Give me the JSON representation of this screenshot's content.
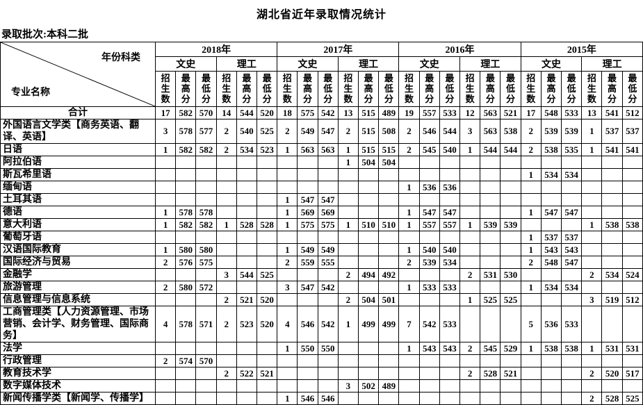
{
  "title": "湖北省近年录取情况统计",
  "batch_label": "录取批次:本科二批",
  "table": {
    "corner": {
      "top_label": "年份科类",
      "bottom_label": "专业名称"
    },
    "years": [
      "2018年",
      "2017年",
      "2016年",
      "2015年"
    ],
    "tracks": [
      "文史",
      "理工"
    ],
    "metrics": [
      "招生数",
      "最高分",
      "最低分"
    ],
    "rows": [
      {
        "name": "合计",
        "center": true,
        "values": [
          17,
          582,
          570,
          14,
          544,
          520,
          18,
          575,
          542,
          13,
          515,
          489,
          19,
          557,
          533,
          12,
          563,
          521,
          17,
          548,
          533,
          13,
          541,
          512
        ]
      },
      {
        "name": "外国语言文学类【商务英语、翻译、英语】",
        "center": false,
        "values": [
          3,
          578,
          577,
          2,
          540,
          525,
          2,
          549,
          547,
          2,
          515,
          508,
          2,
          546,
          544,
          3,
          563,
          538,
          2,
          539,
          539,
          1,
          537,
          537
        ]
      },
      {
        "name": "日语",
        "center": false,
        "values": [
          1,
          582,
          582,
          2,
          534,
          523,
          1,
          563,
          563,
          1,
          515,
          515,
          2,
          545,
          540,
          1,
          544,
          544,
          2,
          538,
          535,
          1,
          541,
          541
        ]
      },
      {
        "name": "阿拉伯语",
        "center": false,
        "values": [
          "",
          "",
          "",
          "",
          "",
          "",
          "",
          "",
          "",
          1,
          504,
          504,
          "",
          "",
          "",
          "",
          "",
          "",
          "",
          "",
          "",
          "",
          "",
          ""
        ]
      },
      {
        "name": "斯瓦希里语",
        "center": false,
        "values": [
          "",
          "",
          "",
          "",
          "",
          "",
          "",
          "",
          "",
          "",
          "",
          "",
          "",
          "",
          "",
          "",
          "",
          "",
          1,
          534,
          534,
          "",
          "",
          ""
        ]
      },
      {
        "name": "缅甸语",
        "center": false,
        "values": [
          "",
          "",
          "",
          "",
          "",
          "",
          "",
          "",
          "",
          "",
          "",
          "",
          1,
          536,
          536,
          "",
          "",
          "",
          "",
          "",
          "",
          "",
          "",
          ""
        ]
      },
      {
        "name": "土耳其语",
        "center": false,
        "values": [
          "",
          "",
          "",
          "",
          "",
          "",
          1,
          547,
          547,
          "",
          "",
          "",
          "",
          "",
          "",
          "",
          "",
          "",
          "",
          "",
          "",
          "",
          "",
          ""
        ]
      },
      {
        "name": "德语",
        "center": false,
        "values": [
          1,
          578,
          578,
          "",
          "",
          "",
          1,
          569,
          569,
          "",
          "",
          "",
          1,
          547,
          547,
          "",
          "",
          "",
          1,
          547,
          547,
          "",
          "",
          ""
        ]
      },
      {
        "name": "意大利语",
        "center": false,
        "values": [
          1,
          582,
          582,
          1,
          528,
          528,
          1,
          575,
          575,
          1,
          510,
          510,
          1,
          557,
          557,
          1,
          539,
          539,
          "",
          "",
          "",
          1,
          538,
          538
        ]
      },
      {
        "name": "葡萄牙语",
        "center": false,
        "values": [
          "",
          "",
          "",
          "",
          "",
          "",
          "",
          "",
          "",
          "",
          "",
          "",
          "",
          "",
          "",
          "",
          "",
          "",
          1,
          537,
          537,
          "",
          "",
          ""
        ]
      },
      {
        "name": "汉语国际教育",
        "center": false,
        "values": [
          1,
          580,
          580,
          "",
          "",
          "",
          1,
          549,
          549,
          "",
          "",
          "",
          1,
          540,
          540,
          "",
          "",
          "",
          1,
          543,
          543,
          "",
          "",
          ""
        ]
      },
      {
        "name": "国际经济与贸易",
        "center": false,
        "values": [
          2,
          576,
          575,
          "",
          "",
          "",
          2,
          559,
          555,
          "",
          "",
          "",
          2,
          539,
          534,
          "",
          "",
          "",
          2,
          548,
          547,
          "",
          "",
          ""
        ]
      },
      {
        "name": "金融学",
        "center": false,
        "values": [
          "",
          "",
          "",
          3,
          544,
          525,
          "",
          "",
          "",
          2,
          494,
          492,
          "",
          "",
          "",
          2,
          531,
          530,
          "",
          "",
          "",
          2,
          534,
          524
        ]
      },
      {
        "name": "旅游管理",
        "center": false,
        "values": [
          2,
          580,
          572,
          "",
          "",
          "",
          3,
          547,
          542,
          "",
          "",
          "",
          1,
          533,
          533,
          "",
          "",
          "",
          1,
          534,
          534,
          "",
          "",
          ""
        ]
      },
      {
        "name": "信息管理与信息系统",
        "center": false,
        "values": [
          "",
          "",
          "",
          2,
          521,
          520,
          "",
          "",
          "",
          2,
          504,
          501,
          "",
          "",
          "",
          1,
          525,
          525,
          "",
          "",
          "",
          3,
          519,
          512
        ]
      },
      {
        "name": "工商管理类【人力资源管理、市场营销、会计学、财务管理、国际商务】",
        "center": false,
        "values": [
          4,
          578,
          571,
          2,
          523,
          520,
          4,
          546,
          542,
          1,
          499,
          499,
          7,
          542,
          533,
          "",
          "",
          "",
          5,
          536,
          533,
          "",
          "",
          ""
        ]
      },
      {
        "name": "法学",
        "center": false,
        "values": [
          "",
          "",
          "",
          "",
          "",
          "",
          1,
          550,
          550,
          "",
          "",
          "",
          1,
          543,
          543,
          2,
          545,
          529,
          1,
          538,
          538,
          1,
          531,
          531
        ]
      },
      {
        "name": "行政管理",
        "center": false,
        "values": [
          2,
          574,
          570,
          "",
          "",
          "",
          "",
          "",
          "",
          "",
          "",
          "",
          "",
          "",
          "",
          "",
          "",
          "",
          "",
          "",
          "",
          "",
          "",
          ""
        ]
      },
      {
        "name": "教育技术学",
        "center": false,
        "values": [
          "",
          "",
          "",
          2,
          522,
          521,
          "",
          "",
          "",
          "",
          "",
          "",
          "",
          "",
          "",
          2,
          528,
          521,
          "",
          "",
          "",
          2,
          520,
          517
        ]
      },
      {
        "name": "数字媒体技术",
        "center": false,
        "values": [
          "",
          "",
          "",
          "",
          "",
          "",
          "",
          "",
          "",
          3,
          502,
          489,
          "",
          "",
          "",
          "",
          "",
          "",
          "",
          "",
          "",
          "",
          "",
          ""
        ]
      },
      {
        "name": "新闻传播学类【新闻学、传播学】",
        "center": false,
        "values": [
          "",
          "",
          "",
          "",
          "",
          "",
          1,
          546,
          546,
          "",
          "",
          "",
          "",
          "",
          "",
          "",
          "",
          "",
          "",
          "",
          "",
          2,
          528,
          525
        ]
      }
    ]
  }
}
